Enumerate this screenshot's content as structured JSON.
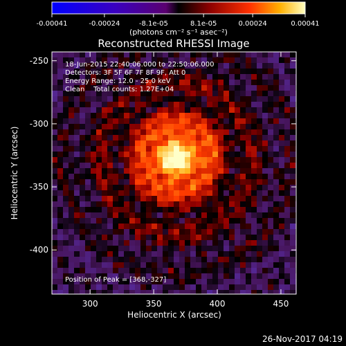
{
  "colorbar": {
    "ticks": [
      "-0.00041",
      "-0.00024",
      "-8.1e-05",
      "8.1e-05",
      "0.00024",
      "0.00041"
    ],
    "tick_values": [
      -0.00041,
      -0.00024,
      -8.1e-05,
      8.1e-05,
      0.00024,
      0.00041
    ],
    "range": [
      -0.00041,
      0.00041
    ],
    "unit_label": "(photons cm⁻² s⁻¹ asec⁻²)"
  },
  "chart_data": {
    "type": "heatmap",
    "title": "Reconstructed RHESSI Image",
    "xlabel": "Heliocentric X (arcsec)",
    "ylabel": "Heliocentric Y (arcsec)",
    "xlim": [
      270,
      462
    ],
    "ylim": [
      -435,
      -243
    ],
    "xticks": [
      300,
      350,
      400,
      450
    ],
    "yticks": [
      -250,
      -300,
      -350,
      -400
    ],
    "annotations": [
      "18-Jun-2015 22:40:06.000 to 22:50:06.000",
      "Detectors: 3F 5F 6F 7F 8F 9F, Att 0",
      "Energy Range: 12.0 - 25.0 keV",
      "Clean    Total counts: 1.27E+04"
    ],
    "peak_label": "Position of Peak = [368,-327]",
    "peak": [
      368,
      -327
    ],
    "colormap": "red-temperature",
    "colors": {
      "background": "#000000",
      "text": "#ffffff",
      "low": "#4020a0",
      "high": "#ffffe0"
    }
  },
  "footer": {
    "timestamp": "26-Nov-2017 04:19"
  }
}
